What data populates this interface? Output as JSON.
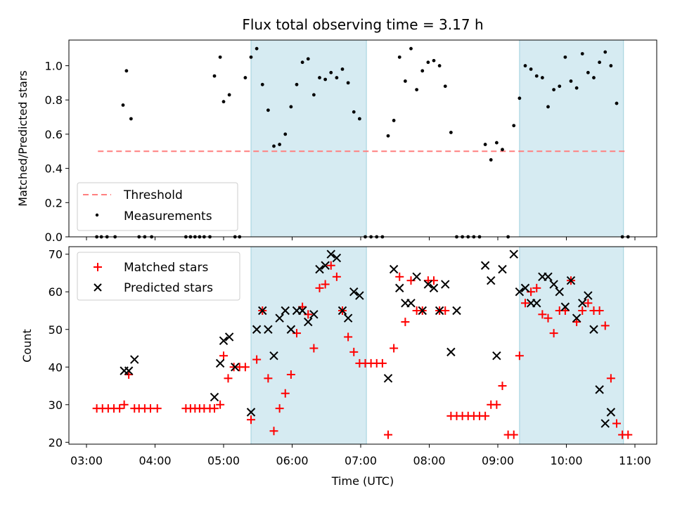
{
  "chart_data": [
    {
      "type": "scatter",
      "title": "Flux total observing time = 3.17 h",
      "ylabel": "Matched/Predicted stars",
      "xlabel": "",
      "ylim": [
        0,
        1.15
      ],
      "yticks": [
        "0.0",
        "0.2",
        "0.4",
        "0.6",
        "0.8",
        "1.0"
      ],
      "shaded_intervals": [
        [
          "05:24",
          "07:05"
        ],
        [
          "09:19",
          "10:50"
        ]
      ],
      "legend": "lower-left",
      "series": [
        {
          "name": "Threshold",
          "style": "dashed-line",
          "color": "#ff7f7f",
          "x": [
            "03:10",
            "10:52"
          ],
          "y": [
            0.5,
            0.5
          ]
        },
        {
          "name": "Measurements",
          "style": "dot",
          "color": "#000000",
          "x": [
            "03:09",
            "03:13",
            "03:18",
            "03:25",
            "03:32",
            "03:35",
            "03:39",
            "03:46",
            "03:51",
            "03:57",
            "04:27",
            "04:31",
            "04:35",
            "04:39",
            "04:43",
            "04:48",
            "04:52",
            "04:57",
            "05:00",
            "05:05",
            "05:10",
            "05:14",
            "05:19",
            "05:24",
            "05:29",
            "05:34",
            "05:39",
            "05:44",
            "05:49",
            "05:54",
            "05:59",
            "06:04",
            "06:09",
            "06:14",
            "06:19",
            "06:24",
            "06:29",
            "06:34",
            "06:39",
            "06:44",
            "06:49",
            "06:54",
            "06:59",
            "07:04",
            "07:09",
            "07:14",
            "07:19",
            "07:24",
            "07:29",
            "07:34",
            "07:39",
            "07:44",
            "07:49",
            "07:54",
            "07:59",
            "08:04",
            "08:09",
            "08:14",
            "08:19",
            "08:24",
            "08:29",
            "08:34",
            "08:39",
            "08:44",
            "08:49",
            "08:54",
            "08:59",
            "09:04",
            "09:09",
            "09:14",
            "09:19",
            "09:24",
            "09:29",
            "09:34",
            "09:39",
            "09:44",
            "09:49",
            "09:54",
            "09:59",
            "10:04",
            "10:09",
            "10:14",
            "10:19",
            "10:24",
            "10:29",
            "10:34",
            "10:39",
            "10:44",
            "10:49",
            "10:54"
          ],
          "y": [
            0,
            0,
            0,
            0,
            0.77,
            0.97,
            0.69,
            0,
            0,
            0,
            0,
            0,
            0,
            0,
            0,
            0,
            0.94,
            1.05,
            0.79,
            0.83,
            0,
            0,
            0.93,
            1.05,
            1.1,
            0.89,
            0.74,
            0.53,
            0.54,
            0.6,
            0.76,
            0.89,
            1.02,
            1.04,
            0.83,
            0.93,
            0.92,
            0.96,
            0.93,
            0.98,
            0.9,
            0.73,
            0.69,
            0,
            0,
            0,
            0,
            0.59,
            0.68,
            1.05,
            0.91,
            1.1,
            0.86,
            0.97,
            1.02,
            1.03,
            1.0,
            0.88,
            0.61,
            0,
            0,
            0,
            0,
            0,
            0.54,
            0.45,
            0.55,
            0.51,
            0,
            0.65,
            0.81,
            1.0,
            0.98,
            0.94,
            0.93,
            0.76,
            0.86,
            0.88,
            1.05,
            0.91,
            0.87,
            1.07,
            0.96,
            0.93,
            1.02,
            1.08,
            1.0,
            0.78,
            0,
            0
          ]
        }
      ]
    },
    {
      "type": "scatter",
      "title": "",
      "xlabel": "Time (UTC)",
      "ylabel": "Count",
      "ylim": [
        19.5,
        72
      ],
      "yticks": [
        "20",
        "30",
        "40",
        "50",
        "60",
        "70"
      ],
      "xticks": [
        "03:00",
        "04:00",
        "05:00",
        "06:00",
        "07:00",
        "08:00",
        "09:00",
        "10:00",
        "11:00"
      ],
      "shaded_intervals": [
        [
          "05:24",
          "07:05"
        ],
        [
          "09:19",
          "10:50"
        ]
      ],
      "legend": "top-left",
      "series": [
        {
          "name": "Matched stars",
          "style": "plus",
          "color": "#ff0000",
          "x": [
            "03:09",
            "03:14",
            "03:19",
            "03:24",
            "03:29",
            "03:33",
            "03:37",
            "03:42",
            "03:46",
            "03:51",
            "03:56",
            "04:02",
            "04:27",
            "04:31",
            "04:35",
            "04:39",
            "04:43",
            "04:48",
            "04:52",
            "04:57",
            "05:00",
            "05:04",
            "05:09",
            "05:14",
            "05:19",
            "05:24",
            "05:29",
            "05:34",
            "05:39",
            "05:44",
            "05:49",
            "05:54",
            "05:59",
            "06:04",
            "06:09",
            "06:14",
            "06:19",
            "06:24",
            "06:29",
            "06:34",
            "06:39",
            "06:44",
            "06:49",
            "06:54",
            "06:59",
            "07:04",
            "07:09",
            "07:14",
            "07:19",
            "07:24",
            "07:29",
            "07:34",
            "07:39",
            "07:44",
            "07:49",
            "07:54",
            "07:59",
            "08:04",
            "08:09",
            "08:14",
            "08:19",
            "08:24",
            "08:29",
            "08:34",
            "08:39",
            "08:44",
            "08:49",
            "08:54",
            "08:59",
            "09:04",
            "09:09",
            "09:14",
            "09:19",
            "09:24",
            "09:29",
            "09:34",
            "09:39",
            "09:44",
            "09:49",
            "09:54",
            "09:59",
            "10:04",
            "10:09",
            "10:14",
            "10:19",
            "10:24",
            "10:29",
            "10:34",
            "10:39",
            "10:44",
            "10:49",
            "10:54"
          ],
          "y": [
            29,
            29,
            29,
            29,
            29,
            30,
            38,
            29,
            29,
            29,
            29,
            29,
            29,
            29,
            29,
            29,
            29,
            29,
            29,
            30,
            43,
            37,
            40,
            40,
            40,
            26,
            42,
            55,
            37,
            23,
            29,
            33,
            38,
            49,
            56,
            54,
            45,
            61,
            62,
            67,
            64,
            55,
            48,
            44,
            41,
            41,
            41,
            41,
            41,
            22,
            45,
            64,
            52,
            63,
            55,
            55,
            63,
            63,
            55,
            55,
            27,
            27,
            27,
            27,
            27,
            27,
            27,
            30,
            30,
            35,
            22,
            22,
            43,
            57,
            60,
            61,
            54,
            53,
            49,
            55,
            55,
            63,
            52,
            55,
            57,
            55,
            55,
            51,
            37,
            25,
            22,
            22
          ]
        },
        {
          "name": "Predicted stars",
          "style": "x",
          "color": "#000000",
          "x": [
            "03:33",
            "03:37",
            "03:42",
            "04:52",
            "04:57",
            "05:00",
            "05:05",
            "05:10",
            "05:24",
            "05:29",
            "05:34",
            "05:39",
            "05:44",
            "05:49",
            "05:54",
            "05:59",
            "06:04",
            "06:09",
            "06:14",
            "06:19",
            "06:24",
            "06:29",
            "06:34",
            "06:39",
            "06:44",
            "06:49",
            "06:54",
            "06:59",
            "07:24",
            "07:29",
            "07:34",
            "07:39",
            "07:44",
            "07:49",
            "07:54",
            "07:59",
            "08:04",
            "08:09",
            "08:14",
            "08:19",
            "08:24",
            "08:49",
            "08:54",
            "08:59",
            "09:04",
            "09:14",
            "09:19",
            "09:24",
            "09:29",
            "09:34",
            "09:39",
            "09:44",
            "09:49",
            "09:54",
            "09:59",
            "10:04",
            "10:09",
            "10:14",
            "10:19",
            "10:24",
            "10:29",
            "10:34",
            "10:39",
            "10:44",
            "10:49"
          ],
          "y": [
            39,
            39,
            42,
            32,
            41,
            47,
            48,
            40,
            28,
            50,
            55,
            50,
            43,
            53,
            55,
            50,
            55,
            55,
            52,
            54,
            66,
            67,
            70,
            69,
            55,
            53,
            60,
            59,
            37,
            66,
            61,
            57,
            57,
            64,
            55,
            62,
            61,
            55,
            62,
            44,
            55,
            67,
            63,
            43,
            66,
            70,
            60,
            61,
            57,
            57,
            64,
            64,
            62,
            60,
            56,
            63,
            53,
            57,
            59,
            50,
            34,
            25,
            28,
            null,
            null
          ]
        }
      ]
    }
  ]
}
